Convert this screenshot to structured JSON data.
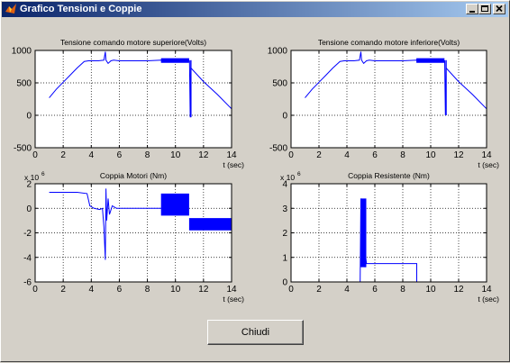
{
  "window": {
    "title": "Grafico Tensioni e Coppie",
    "controls": [
      "minimize",
      "maximize",
      "close"
    ]
  },
  "close_button": {
    "label": "Chiudi"
  },
  "chart_data": [
    {
      "type": "line",
      "title": "Tensione comando motore superiore(Volts)",
      "xlabel": "t (sec)",
      "ylabel": "",
      "xlim": [
        0,
        14
      ],
      "ylim": [
        -500,
        1000
      ],
      "xticks": [
        0,
        2,
        4,
        6,
        8,
        10,
        12,
        14
      ],
      "yticks": [
        -500,
        0,
        500,
        1000
      ],
      "grid": true,
      "color": "#0000ff",
      "x": [
        1,
        1.5,
        2,
        2.5,
        3,
        3.5,
        3.8,
        4.5,
        4.9,
        5.0,
        5.05,
        5.2,
        5.4,
        5.6,
        6,
        7,
        8,
        9,
        10,
        11,
        11.05,
        11.1,
        12,
        13,
        14
      ],
      "y": [
        270,
        400,
        510,
        620,
        730,
        830,
        840,
        840,
        850,
        980,
        850,
        800,
        840,
        850,
        840,
        840,
        840,
        850,
        840,
        840,
        -30,
        730,
        520,
        320,
        100
      ],
      "bursts": [
        {
          "x0": 9.0,
          "x1": 11.0,
          "ylo": 810,
          "yhi": 880
        }
      ],
      "spikes": [
        {
          "x": 11.1,
          "ylo": -30,
          "yhi": 850
        }
      ]
    },
    {
      "type": "line",
      "title": "Tensione comando motore inferiore(Volts)",
      "xlabel": "t (sec)",
      "ylabel": "",
      "xlim": [
        0,
        14
      ],
      "ylim": [
        -500,
        1000
      ],
      "xticks": [
        0,
        2,
        4,
        6,
        8,
        10,
        12,
        14
      ],
      "yticks": [
        -500,
        0,
        500,
        1000
      ],
      "grid": true,
      "color": "#0000ff",
      "x": [
        1,
        1.5,
        2,
        2.5,
        3,
        3.5,
        3.8,
        4.5,
        4.9,
        5.0,
        5.05,
        5.2,
        5.4,
        5.6,
        6,
        7,
        8,
        9,
        10,
        11,
        11.05,
        11.1,
        12,
        13,
        14
      ],
      "y": [
        270,
        400,
        510,
        620,
        730,
        830,
        840,
        840,
        850,
        980,
        850,
        800,
        840,
        850,
        840,
        840,
        840,
        850,
        840,
        840,
        0,
        730,
        520,
        320,
        100
      ],
      "bursts": [
        {
          "x0": 9.0,
          "x1": 11.0,
          "ylo": 810,
          "yhi": 880
        }
      ],
      "spikes": [
        {
          "x": 11.1,
          "ylo": 0,
          "yhi": 850
        }
      ]
    },
    {
      "type": "line",
      "title": "Coppia Motori (Nm)",
      "xlabel": "t (sec)",
      "ylabel": "",
      "scale_label": "x 10",
      "scale_exponent": "6",
      "xlim": [
        0,
        14
      ],
      "ylim": [
        -6,
        2
      ],
      "xticks": [
        0,
        2,
        4,
        6,
        8,
        10,
        12,
        14
      ],
      "yticks": [
        -6,
        -4,
        -2,
        0,
        2
      ],
      "grid": true,
      "color": "#0000ff",
      "x": [
        1,
        2,
        3,
        3.7,
        3.9,
        4.2,
        4.6,
        4.8,
        4.9,
        5.0,
        5.05,
        5.1,
        5.2,
        5.3,
        5.5,
        5.8,
        6.2,
        7,
        8,
        9.0
      ],
      "y": [
        1.3,
        1.3,
        1.3,
        1.2,
        0.2,
        0.0,
        -0.1,
        0.0,
        -1.5,
        -4.2,
        1.6,
        -1.0,
        0.8,
        -0.5,
        0.2,
        0.0,
        0.0,
        0.0,
        0.0,
        0.0
      ],
      "bursts": [
        {
          "x0": 9.0,
          "x1": 11.0,
          "ylo": -0.6,
          "yhi": 1.2
        },
        {
          "x0": 11.0,
          "x1": 14.0,
          "ylo": -1.8,
          "yhi": -0.8
        }
      ]
    },
    {
      "type": "line",
      "title": "Coppia Resistente (Nm)",
      "xlabel": "t (sec)",
      "ylabel": "",
      "scale_label": "x 10",
      "scale_exponent": "6",
      "xlim": [
        0,
        14
      ],
      "ylim": [
        0,
        4
      ],
      "xticks": [
        0,
        2,
        4,
        6,
        8,
        10,
        12,
        14
      ],
      "yticks": [
        0,
        1,
        2,
        3,
        4
      ],
      "grid": true,
      "color": "#0000ff",
      "x": [
        1,
        4.95,
        5.0,
        5.05,
        5.15,
        5.25,
        5.3,
        5.35,
        5.4,
        5.6,
        9.0,
        9.0,
        14
      ],
      "y": [
        0,
        0,
        3.4,
        3.1,
        3.3,
        1.5,
        0.6,
        1.0,
        0.75,
        0.75,
        0.75,
        0,
        0
      ],
      "bursts": [
        {
          "x0": 5.0,
          "x1": 5.4,
          "ylo": 0.6,
          "yhi": 3.4
        }
      ]
    }
  ]
}
